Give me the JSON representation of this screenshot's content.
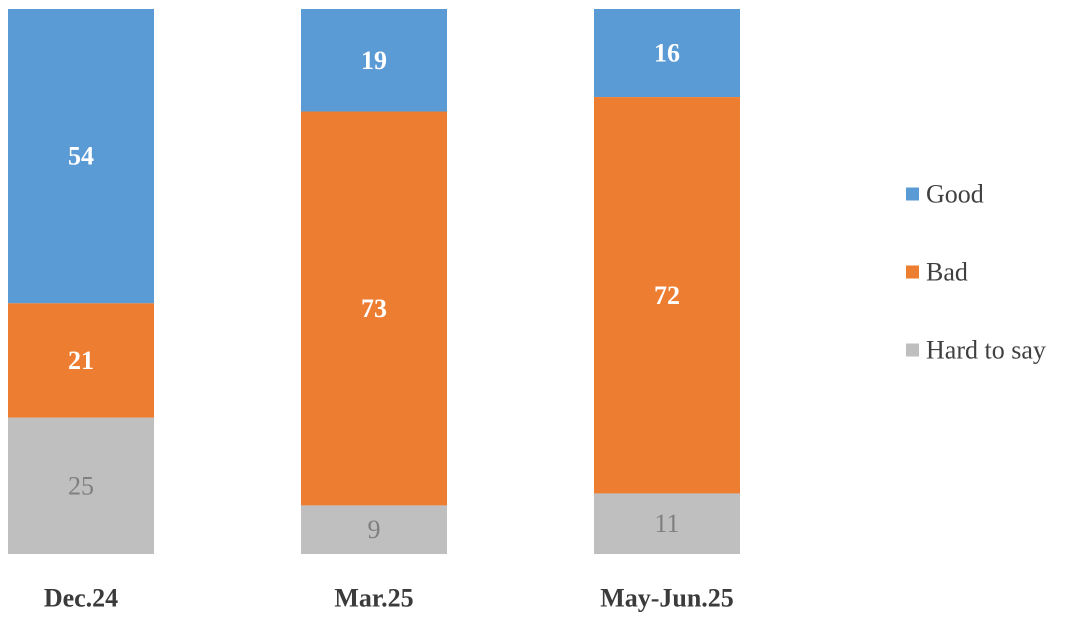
{
  "chart_data": {
    "type": "bar",
    "stacked": true,
    "orientation": "vertical",
    "percent_stacked": true,
    "title": "",
    "xlabel": "",
    "ylabel": "",
    "ylim": [
      0,
      100
    ],
    "grid": false,
    "legend_position": "right",
    "categories": [
      "Dec.24",
      "Mar.25",
      "May-Jun.25"
    ],
    "series": [
      {
        "name": "Good",
        "color": "#5b9bd5",
        "label_color": "#ffffff",
        "values": [
          54,
          19,
          16
        ]
      },
      {
        "name": "Bad",
        "color": "#ed7d31",
        "label_color": "#ffffff",
        "values": [
          21,
          73,
          72
        ]
      },
      {
        "name": "Hard to say",
        "color": "#bfbfbf",
        "label_color": "#7f7f7f",
        "values": [
          25,
          9,
          11
        ]
      }
    ]
  }
}
